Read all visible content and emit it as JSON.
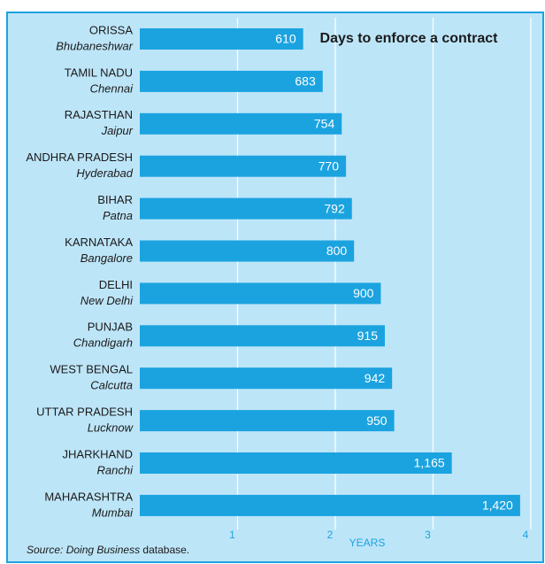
{
  "chart_data": {
    "type": "barh",
    "title": "Days to enforce a contract",
    "categories": [
      "ORISSA",
      "TAMIL NADU",
      "RAJASTHAN",
      "ANDHRA PRADESH",
      "BIHAR",
      "KARNATAKA",
      "DELHI",
      "PUNJAB",
      "WEST BENGAL",
      "UTTAR PRADESH",
      "JHARKHAND",
      "MAHARASHTRA"
    ],
    "subcategories": [
      "Bhubaneshwar",
      "Chennai",
      "Jaipur",
      "Hyderabad",
      "Patna",
      "Bangalore",
      "New Delhi",
      "Chandigarh",
      "Calcutta",
      "Lucknow",
      "Ranchi",
      "Mumbai"
    ],
    "values": [
      610,
      683,
      754,
      770,
      792,
      800,
      900,
      915,
      942,
      950,
      1165,
      1420
    ],
    "value_labels": [
      "610",
      "683",
      "754",
      "770",
      "792",
      "800",
      "900",
      "915",
      "942",
      "950",
      "1,165",
      "1,420"
    ],
    "color": "#1ba3e0",
    "xlim": [
      0,
      1470
    ],
    "xticks": [
      {
        "value": 365,
        "label": "1"
      },
      {
        "value": 730,
        "label": "2"
      },
      {
        "value": 1095,
        "label": "3"
      },
      {
        "value": 1460,
        "label": "4"
      }
    ],
    "xlabel": "YEARS",
    "grid": true,
    "source_italic": "Source: Doing Business",
    "source_rest": "database."
  }
}
